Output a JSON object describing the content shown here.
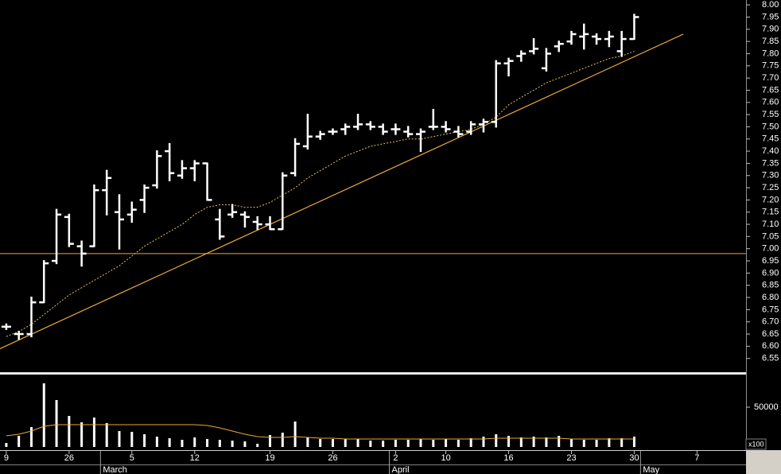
{
  "chart_data": [
    {
      "type": "ohlc",
      "color": "#ffffff",
      "xlim": [
        -0.5,
        58.9
      ],
      "ylim": [
        6.5,
        8.02
      ],
      "yticks": [
        6.55,
        {
          "value": 6.6,
          "label": "6.60"
        },
        6.65,
        {
          "value": 6.7,
          "label": "6.70"
        },
        6.75,
        {
          "value": 6.8,
          "label": "6.80"
        },
        6.85,
        {
          "value": 6.9,
          "label": "6.90"
        },
        6.95,
        {
          "value": 7,
          "label": "7.00"
        },
        7.05,
        {
          "value": 7.1,
          "label": "7.10"
        },
        7.15,
        {
          "value": 7.2,
          "label": "7.20"
        },
        7.25,
        {
          "value": 7.3,
          "label": "7.30"
        },
        7.35,
        {
          "value": 7.4,
          "label": "7.40"
        },
        7.45,
        {
          "value": 7.5,
          "label": "7.50"
        },
        7.55,
        {
          "value": 7.6,
          "label": "7.60"
        },
        7.65,
        {
          "value": 7.7,
          "label": "7.70"
        },
        7.75,
        {
          "value": 7.8,
          "label": "7.80"
        },
        7.85,
        {
          "value": 7.9,
          "label": "7.90"
        },
        7.95,
        {
          "value": 8,
          "label": "8.00"
        }
      ],
      "open": [
        6.68,
        6.65,
        6.65,
        6.78,
        6.95,
        7.13,
        7.01,
        7.01,
        7.24,
        7.15,
        7.14,
        7.2,
        7.26,
        7.4,
        7.3,
        7.33,
        7.35,
        7.12,
        7.14,
        7.14,
        7.11,
        7.1,
        7.08,
        7.31,
        7.42,
        7.46,
        7.48,
        7.49,
        7.5,
        7.51,
        7.5,
        7.49,
        7.48,
        7.47,
        7.5,
        7.5,
        7.48,
        7.48,
        7.51,
        7.52,
        7.76,
        7.79,
        7.81,
        7.74,
        7.83,
        7.85,
        7.87,
        7.87,
        7.86,
        7.81,
        7.86
      ],
      "high": [
        6.69,
        6.66,
        6.8,
        6.95,
        7.16,
        7.14,
        7.03,
        7.26,
        7.32,
        7.22,
        7.19,
        7.26,
        7.4,
        7.43,
        7.36,
        7.36,
        7.35,
        7.16,
        7.18,
        7.15,
        7.13,
        7.13,
        7.31,
        7.45,
        7.55,
        7.48,
        7.49,
        7.51,
        7.55,
        7.52,
        7.51,
        7.51,
        7.5,
        7.49,
        7.57,
        7.52,
        7.5,
        7.52,
        7.53,
        7.77,
        7.78,
        7.81,
        7.86,
        7.82,
        7.85,
        7.89,
        7.92,
        7.88,
        7.89,
        7.89,
        7.96
      ],
      "low": [
        6.67,
        6.63,
        6.64,
        6.78,
        6.94,
        7.01,
        6.93,
        7.01,
        7.14,
        7.0,
        7.11,
        7.15,
        7.25,
        7.28,
        7.29,
        7.28,
        7.2,
        7.04,
        7.13,
        7.09,
        7.08,
        7.08,
        7.08,
        7.3,
        7.41,
        7.45,
        7.47,
        7.47,
        7.49,
        7.49,
        7.47,
        7.47,
        7.46,
        7.4,
        7.49,
        7.48,
        7.46,
        7.47,
        7.48,
        7.5,
        7.71,
        7.77,
        7.8,
        7.73,
        7.81,
        7.84,
        7.82,
        7.84,
        7.83,
        7.79,
        7.86
      ],
      "close": [
        6.68,
        6.65,
        6.78,
        6.94,
        7.14,
        7.02,
        6.98,
        7.24,
        7.29,
        7.12,
        7.16,
        7.25,
        7.38,
        7.31,
        7.33,
        7.35,
        7.2,
        7.05,
        7.15,
        7.13,
        7.1,
        7.08,
        7.3,
        7.43,
        7.46,
        7.47,
        7.48,
        7.5,
        7.51,
        7.5,
        7.48,
        7.49,
        7.47,
        7.48,
        7.5,
        7.49,
        7.47,
        7.51,
        7.52,
        7.76,
        7.77,
        7.8,
        7.82,
        7.8,
        7.84,
        7.88,
        7.88,
        7.86,
        7.87,
        7.86,
        7.95
      ],
      "moving_average": {
        "color": "#e0c060",
        "values": [
          6.64,
          6.66,
          6.69,
          6.73,
          6.77,
          6.81,
          6.84,
          6.87,
          6.9,
          6.93,
          6.97,
          7.01,
          7.04,
          7.07,
          7.1,
          7.14,
          7.17,
          7.18,
          7.18,
          7.17,
          7.17,
          7.19,
          7.22,
          7.25,
          7.29,
          7.32,
          7.35,
          7.38,
          7.4,
          7.42,
          7.43,
          7.44,
          7.45,
          7.45,
          7.46,
          7.47,
          7.48,
          7.49,
          7.51,
          7.54,
          7.59,
          7.62,
          7.65,
          7.68,
          7.7,
          7.72,
          7.74,
          7.76,
          7.78,
          7.79,
          7.81
        ]
      },
      "trend_line": {
        "color": "#e8a838",
        "x": [
          -0.5,
          53.9
        ],
        "y": [
          6.59,
          7.88
        ]
      },
      "horizontal_line": {
        "color": "#e8a838",
        "value": 6.98
      }
    },
    {
      "type": "bar",
      "color": "#ffffff",
      "xlim": [
        -0.5,
        58.9
      ],
      "ylim": [
        0,
        90000
      ],
      "yticks": [
        50000
      ],
      "unit_label": "x100",
      "values": [
        5000,
        14000,
        25000,
        80000,
        59000,
        39000,
        31000,
        37000,
        30000,
        20000,
        19000,
        16000,
        13000,
        11000,
        9000,
        12000,
        10000,
        9000,
        8000,
        7000,
        4000,
        15000,
        18000,
        32000,
        12000,
        10000,
        10000,
        10000,
        10000,
        8000,
        8000,
        9000,
        9000,
        10000,
        9000,
        10000,
        9000,
        11000,
        13000,
        16000,
        14000,
        12000,
        13000,
        12000,
        14000,
        10000,
        9000,
        9000,
        11000,
        11000,
        13000
      ],
      "moving_average": {
        "color": "#e8a838",
        "values": [
          14000,
          16000,
          20000,
          26000,
          28000,
          28000,
          28000,
          28000,
          28000,
          28000,
          28000,
          28000,
          28000,
          28000,
          28000,
          28000,
          27000,
          24000,
          20000,
          16000,
          13000,
          12000,
          12000,
          13000,
          12000,
          11000,
          11000,
          10000,
          10000,
          10000,
          10000,
          10000,
          10000,
          10000,
          10000,
          10000,
          10000,
          10000,
          10000,
          11000,
          11000,
          11000,
          11000,
          11000,
          11000,
          10000,
          10000,
          10000,
          10000,
          10000,
          10000
        ]
      },
      "xticks": [
        {
          "value": 0,
          "label": "9"
        },
        {
          "value": 5,
          "label": "26"
        },
        {
          "value": 10,
          "label": "5"
        },
        {
          "value": 15,
          "label": "12"
        },
        {
          "value": 21,
          "label": "19"
        },
        {
          "value": 26,
          "label": "26"
        },
        {
          "value": 31,
          "label": "2"
        },
        {
          "value": 35,
          "label": "10"
        },
        {
          "value": 40,
          "label": "16"
        },
        {
          "value": 45,
          "label": "23"
        },
        {
          "value": 50,
          "label": "30"
        },
        {
          "value": 55,
          "label": "7"
        }
      ],
      "month_labels": [
        {
          "value": 7.5,
          "label": "March"
        },
        {
          "value": 30.5,
          "label": "April"
        },
        {
          "value": 50.5,
          "label": "May"
        }
      ]
    }
  ]
}
